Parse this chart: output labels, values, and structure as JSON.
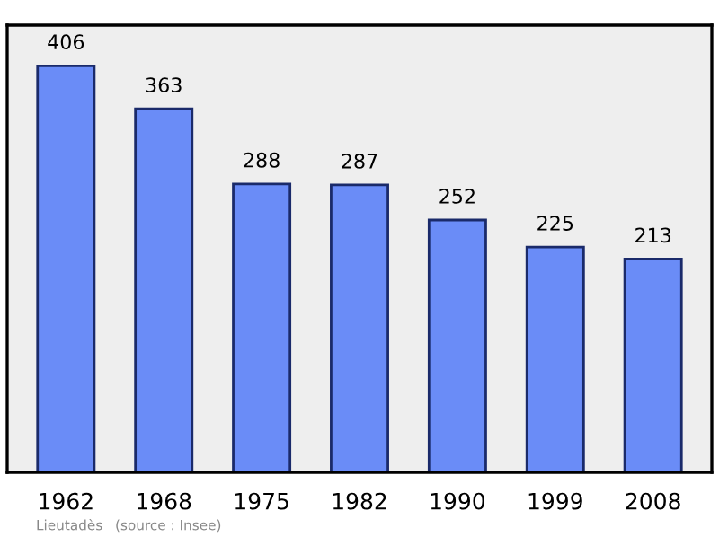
{
  "chart_data": {
    "type": "bar",
    "categories": [
      "1962",
      "1968",
      "1975",
      "1982",
      "1990",
      "1999",
      "2008"
    ],
    "values": [
      406,
      363,
      288,
      287,
      252,
      225,
      213
    ],
    "color": "#6a8cf7",
    "data_labels": true,
    "grid": false,
    "legend": false,
    "annotations": [
      "Lieutadès",
      "(source : Insee)"
    ]
  }
}
